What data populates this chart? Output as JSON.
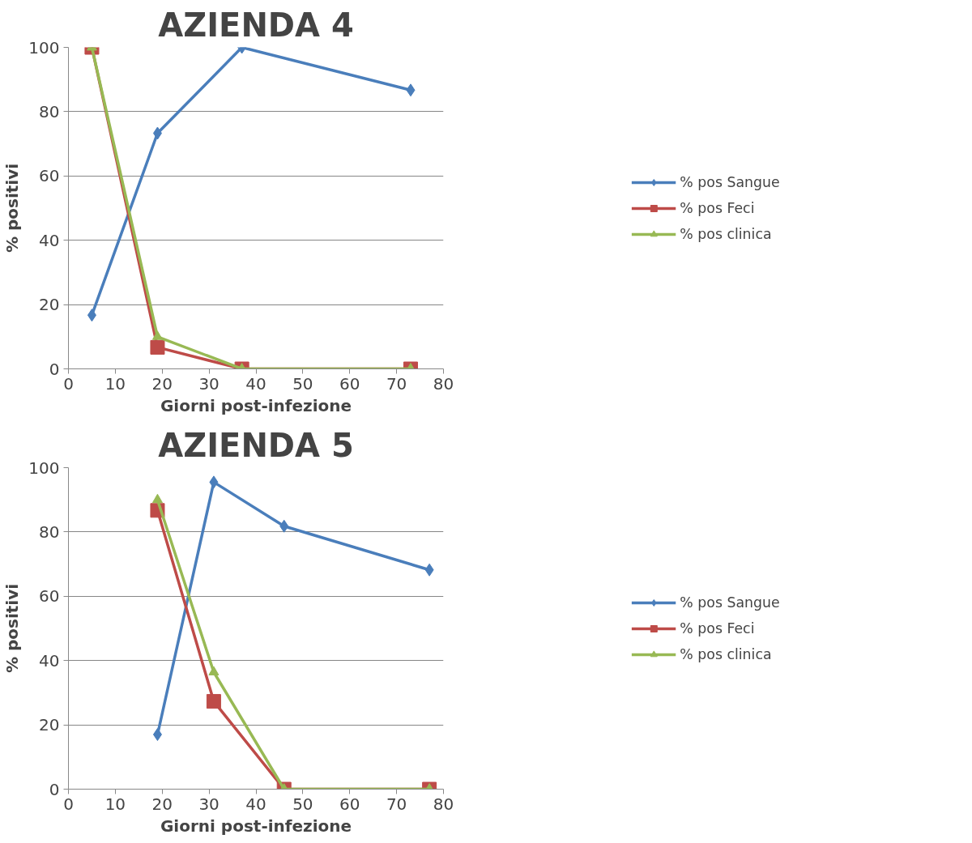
{
  "chart_data": [
    {
      "type": "line",
      "title": "AZIENDA 4",
      "xlabel": "Giorni post-infezione",
      "ylabel": "% positivi",
      "xlim": [
        0,
        80
      ],
      "xticks": [
        0,
        10,
        20,
        30,
        40,
        50,
        60,
        70,
        80
      ],
      "ylim": [
        0,
        100
      ],
      "yticks": [
        0,
        20,
        40,
        60,
        80,
        100
      ],
      "grid": "y",
      "legend": "right",
      "line_style": "solid",
      "series": [
        {
          "name": "% pos Sangue",
          "color": "#4a7ebb",
          "marker": "diamond",
          "x": [
            5,
            19,
            37,
            73
          ],
          "values": [
            16.7,
            73.3,
            100,
            86.7
          ]
        },
        {
          "name": "% pos Feci",
          "color": "#be4b48",
          "marker": "square",
          "x": [
            5,
            19,
            37,
            73
          ],
          "values": [
            100,
            6.7,
            0,
            0
          ]
        },
        {
          "name": "% pos clinica",
          "color": "#98b954",
          "marker": "triangle",
          "x": [
            5,
            19,
            37,
            73
          ],
          "values": [
            100,
            10,
            0,
            0
          ]
        }
      ]
    },
    {
      "type": "line",
      "title": "AZIENDA 5",
      "xlabel": "Giorni post-infezione",
      "ylabel": "% positivi",
      "xlim": [
        0,
        80
      ],
      "xticks": [
        0,
        10,
        20,
        30,
        40,
        50,
        60,
        70,
        80
      ],
      "ylim": [
        0,
        100
      ],
      "yticks": [
        0,
        20,
        40,
        60,
        80,
        100
      ],
      "grid": "y",
      "legend": "right",
      "line_style": "solid",
      "series": [
        {
          "name": "% pos Sangue",
          "color": "#4a7ebb",
          "marker": "diamond",
          "x": [
            19,
            31,
            46,
            77
          ],
          "values": [
            17,
            95.5,
            81.8,
            68.2
          ]
        },
        {
          "name": "% pos Feci",
          "color": "#be4b48",
          "marker": "square",
          "x": [
            19,
            31,
            46,
            77
          ],
          "values": [
            86.7,
            27.3,
            0,
            0
          ]
        },
        {
          "name": "% pos clinica",
          "color": "#98b954",
          "marker": "triangle",
          "x": [
            19,
            31,
            46,
            77
          ],
          "values": [
            90,
            36.4,
            0,
            0
          ]
        }
      ]
    }
  ]
}
